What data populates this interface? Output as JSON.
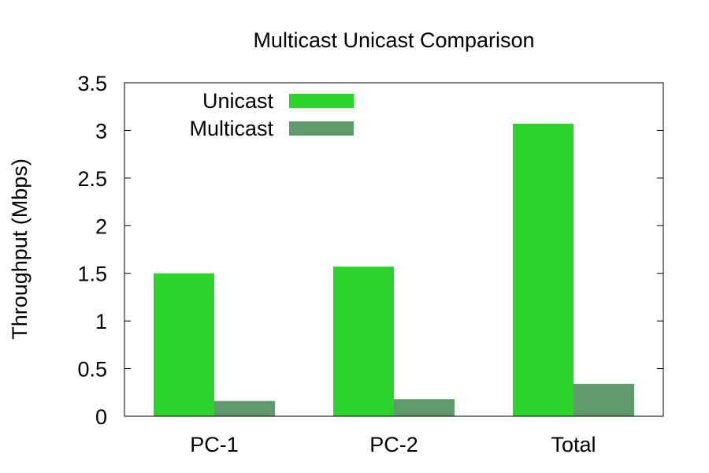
{
  "chart_data": {
    "type": "bar",
    "title": "Multicast Unicast Comparison",
    "xlabel": "",
    "ylabel": "Throughput (Mbps)",
    "categories": [
      "PC-1",
      "PC-2",
      "Total"
    ],
    "series": [
      {
        "name": "Unicast",
        "values": [
          1.5,
          1.57,
          3.07
        ],
        "color": "#2ad42a"
      },
      {
        "name": "Multicast",
        "values": [
          0.16,
          0.18,
          0.34
        ],
        "color": "#5f9a6c"
      }
    ],
    "ylim": [
      0,
      3.5
    ],
    "yticks": [
      "0",
      "0.5",
      "1",
      "1.5",
      "2",
      "2.5",
      "3",
      "3.5"
    ],
    "grid": false,
    "legend_position": "top-left"
  }
}
